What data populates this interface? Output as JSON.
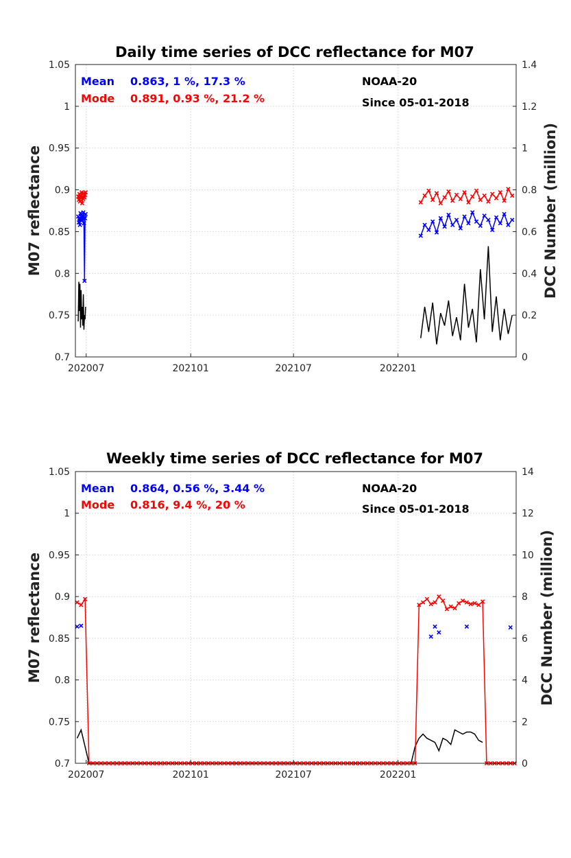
{
  "chart_data": [
    {
      "type": "line",
      "title": "Daily time series of DCC reflectance for M07",
      "ylabel": "M07 reflectance",
      "y2label": "DCC Number (million)",
      "ylim": [
        0.7,
        1.05
      ],
      "y2lim": [
        0,
        1.4
      ],
      "yticks": [
        "0.7",
        "0.75",
        "0.8",
        "0.85",
        "0.9",
        "0.95",
        "1",
        "1.05"
      ],
      "y2ticks": [
        "0",
        "0.2",
        "0.4",
        "0.6",
        "0.8",
        "1",
        "1.2",
        "1.4"
      ],
      "xticks": [
        "202007",
        "202101",
        "202107",
        "202201"
      ],
      "grid": true,
      "annotations": {
        "mean_label": "Mean",
        "mean_stats": "0.863, 1 %, 17.3 %",
        "mode_label": "Mode",
        "mode_stats": "0.891, 0.93 %, 21.2 %",
        "satellite": "NOAA-20",
        "since": "Since 05-01-2018"
      },
      "series": [
        {
          "name": "Mean",
          "axis": "left",
          "color": "#0000ff",
          "marker": "x",
          "segments": [
            {
              "x": [
                "2020-06-17",
                "2020-06-18",
                "2020-06-19",
                "2020-06-20",
                "2020-06-21",
                "2020-06-22",
                "2020-06-23",
                "2020-06-24",
                "2020-06-25",
                "2020-06-26",
                "2020-06-27",
                "2020-06-28",
                "2020-06-29",
                "2020-06-30"
              ],
              "y": [
                0.868,
                0.861,
                0.866,
                0.858,
                0.872,
                0.865,
                0.863,
                0.869,
                0.866,
                0.873,
                0.86,
                0.791,
                0.866,
                0.871
              ]
            },
            {
              "x": [
                "2022-02-10",
                "2022-02-17",
                "2022-02-24",
                "2022-03-03",
                "2022-03-10",
                "2022-03-17",
                "2022-03-24",
                "2022-03-31",
                "2022-04-07",
                "2022-04-14",
                "2022-04-21",
                "2022-04-28",
                "2022-05-05",
                "2022-05-12",
                "2022-05-19",
                "2022-05-26",
                "2022-06-02",
                "2022-06-09",
                "2022-06-16",
                "2022-06-23",
                "2022-06-30",
                "2022-07-07",
                "2022-07-14",
                "2022-07-21"
              ],
              "y": [
                0.845,
                0.858,
                0.852,
                0.862,
                0.849,
                0.866,
                0.856,
                0.87,
                0.858,
                0.864,
                0.854,
                0.868,
                0.86,
                0.873,
                0.862,
                0.857,
                0.869,
                0.864,
                0.852,
                0.867,
                0.86,
                0.871,
                0.858,
                0.864
              ]
            }
          ]
        },
        {
          "name": "Mode",
          "axis": "left",
          "color": "#ff0000",
          "marker": "x",
          "segments": [
            {
              "x": [
                "2020-06-17",
                "2020-06-18",
                "2020-06-19",
                "2020-06-20",
                "2020-06-21",
                "2020-06-22",
                "2020-06-23",
                "2020-06-24",
                "2020-06-25",
                "2020-06-26",
                "2020-06-27",
                "2020-06-28",
                "2020-06-29",
                "2020-06-30"
              ],
              "y": [
                0.892,
                0.888,
                0.895,
                0.886,
                0.893,
                0.89,
                0.897,
                0.884,
                0.892,
                0.889,
                0.896,
                0.891,
                0.894,
                0.897
              ]
            },
            {
              "x": [
                "2022-02-10",
                "2022-02-17",
                "2022-02-24",
                "2022-03-03",
                "2022-03-10",
                "2022-03-17",
                "2022-03-24",
                "2022-03-31",
                "2022-04-07",
                "2022-04-14",
                "2022-04-21",
                "2022-04-28",
                "2022-05-05",
                "2022-05-12",
                "2022-05-19",
                "2022-05-26",
                "2022-06-02",
                "2022-06-09",
                "2022-06-16",
                "2022-06-23",
                "2022-06-30",
                "2022-07-07",
                "2022-07-14",
                "2022-07-21"
              ],
              "y": [
                0.885,
                0.893,
                0.899,
                0.888,
                0.896,
                0.884,
                0.891,
                0.898,
                0.887,
                0.894,
                0.889,
                0.897,
                0.885,
                0.892,
                0.899,
                0.888,
                0.893,
                0.886,
                0.895,
                0.89,
                0.897,
                0.887,
                0.901,
                0.893
              ]
            }
          ]
        },
        {
          "name": "DCC Number",
          "axis": "right",
          "color": "#000000",
          "marker": "none",
          "segments": [
            {
              "x": [
                "2020-06-17",
                "2020-06-18",
                "2020-06-19",
                "2020-06-20",
                "2020-06-21",
                "2020-06-22",
                "2020-06-23",
                "2020-06-24",
                "2020-06-25",
                "2020-06-26",
                "2020-06-27",
                "2020-06-28",
                "2020-06-29",
                "2020-06-30"
              ],
              "y": [
                0.17,
                0.36,
                0.22,
                0.35,
                0.14,
                0.32,
                0.18,
                0.24,
                0.15,
                0.3,
                0.13,
                0.2,
                0.18,
                0.24
              ]
            },
            {
              "x": [
                "2022-02-10",
                "2022-02-17",
                "2022-02-24",
                "2022-03-03",
                "2022-03-10",
                "2022-03-17",
                "2022-03-24",
                "2022-03-31",
                "2022-04-07",
                "2022-04-14",
                "2022-04-21",
                "2022-04-28",
                "2022-05-05",
                "2022-05-12",
                "2022-05-19",
                "2022-05-26",
                "2022-06-02",
                "2022-06-09",
                "2022-06-16",
                "2022-06-23",
                "2022-06-30",
                "2022-07-07",
                "2022-07-14",
                "2022-07-21"
              ],
              "y": [
                0.09,
                0.24,
                0.12,
                0.26,
                0.06,
                0.21,
                0.15,
                0.27,
                0.1,
                0.19,
                0.08,
                0.35,
                0.14,
                0.23,
                0.07,
                0.42,
                0.18,
                0.53,
                0.12,
                0.29,
                0.08,
                0.23,
                0.11,
                0.2
              ]
            }
          ]
        }
      ]
    },
    {
      "type": "line",
      "title": "Weekly time series of DCC reflectance for M07",
      "ylabel": "M07 reflectance",
      "y2label": "DCC Number (million)",
      "ylim": [
        0.7,
        1.05
      ],
      "y2lim": [
        0,
        14
      ],
      "yticks": [
        "0.7",
        "0.75",
        "0.8",
        "0.85",
        "0.9",
        "0.95",
        "1",
        "1.05"
      ],
      "y2ticks": [
        "0",
        "2",
        "4",
        "6",
        "8",
        "10",
        "12",
        "14"
      ],
      "xticks": [
        "202007",
        "202101",
        "202107",
        "202201"
      ],
      "grid": true,
      "annotations": {
        "mean_label": "Mean",
        "mean_stats": "0.864, 0.56 %, 3.44 %",
        "mode_label": "Mode",
        "mode_stats": "0.816, 9.4 %, 20 %",
        "satellite": "NOAA-20",
        "since": "Since 05-01-2018"
      },
      "series": [
        {
          "name": "Mean",
          "axis": "left",
          "color": "#0000ff",
          "marker": "x",
          "line": false,
          "x": [
            "2020-06-15",
            "2020-06-22",
            "2022-02-28",
            "2022-03-07",
            "2022-03-14",
            "2022-05-02",
            "2022-07-18"
          ],
          "y": [
            0.864,
            0.865,
            0.852,
            0.864,
            0.857,
            0.864,
            0.863
          ]
        },
        {
          "name": "Mode",
          "axis": "left",
          "color": "#ff0000",
          "marker": "x",
          "line": true,
          "weekly_start": "2020-06-15",
          "weekly_count": 111,
          "values": {
            "0": 0.893,
            "1": 0.89,
            "2": 0.897,
            "86": 0.89,
            "87": 0.893,
            "88": 0.897,
            "89": 0.891,
            "90": 0.893,
            "91": 0.9,
            "92": 0.895,
            "93": 0.885,
            "94": 0.888,
            "95": 0.886,
            "96": 0.892,
            "97": 0.895,
            "98": 0.893,
            "99": 0.891,
            "100": 0.892,
            "101": 0.89,
            "102": 0.894
          },
          "default": 0.7
        },
        {
          "name": "DCC Number",
          "axis": "right",
          "color": "#000000",
          "marker": "none",
          "segments": [
            {
              "x": [
                "2020-06-15",
                "2020-06-22",
                "2020-06-29",
                "2020-07-06",
                "2020-07-13"
              ],
              "y": [
                1.2,
                1.6,
                0.8,
                0.0,
                0.0
              ]
            },
            {
              "x": [
                "2022-01-24",
                "2022-01-31",
                "2022-02-07",
                "2022-02-14",
                "2022-02-21",
                "2022-02-28",
                "2022-03-07",
                "2022-03-14",
                "2022-03-21",
                "2022-03-28",
                "2022-04-04",
                "2022-04-11",
                "2022-04-18",
                "2022-04-25",
                "2022-05-02",
                "2022-05-09",
                "2022-05-16",
                "2022-05-23",
                "2022-05-30"
              ],
              "y": [
                0.0,
                0.8,
                1.2,
                1.4,
                1.2,
                1.1,
                1.0,
                0.6,
                1.2,
                1.1,
                0.9,
                1.6,
                1.5,
                1.4,
                1.5,
                1.5,
                1.4,
                1.1,
                1.0
              ]
            }
          ]
        }
      ]
    }
  ]
}
